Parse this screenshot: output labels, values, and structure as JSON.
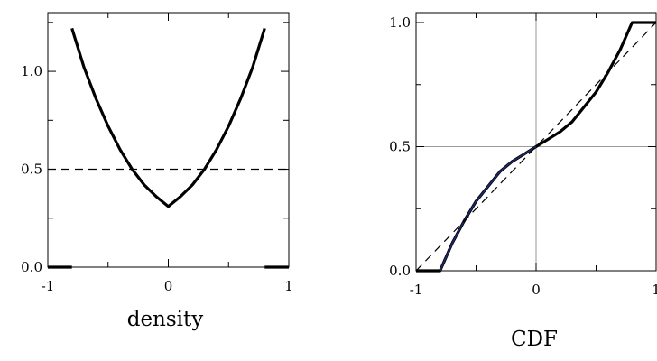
{
  "chart_data": [
    {
      "type": "line",
      "title": "density",
      "xlim": [
        -1,
        1
      ],
      "ylim": [
        0,
        1.3
      ],
      "x_ticks": [
        "-1",
        "0",
        "1"
      ],
      "y_ticks": [
        "0.0",
        "0.5",
        "1.0"
      ],
      "grid": false,
      "series": [
        {
          "style": "solid-thick",
          "x": [
            -0.8,
            -0.7,
            -0.6,
            -0.5,
            -0.4,
            -0.3,
            -0.2,
            -0.1,
            0.0,
            0.1,
            0.2,
            0.3,
            0.4,
            0.5,
            0.6,
            0.7,
            0.8
          ],
          "y": [
            1.22,
            1.02,
            0.86,
            0.72,
            0.6,
            0.5,
            0.42,
            0.36,
            0.31,
            0.36,
            0.42,
            0.5,
            0.6,
            0.72,
            0.86,
            1.02,
            1.22
          ]
        },
        {
          "style": "solid-thick",
          "x": [
            -1.0,
            -0.8
          ],
          "y": [
            0.0,
            0.0
          ]
        },
        {
          "style": "solid-thick",
          "x": [
            0.8,
            1.0
          ],
          "y": [
            0.0,
            0.0
          ]
        },
        {
          "style": "dashed",
          "x": [
            -1.0,
            1.0
          ],
          "y": [
            0.5,
            0.5
          ]
        }
      ]
    },
    {
      "type": "line",
      "title": "CDF",
      "xlim": [
        -1,
        1
      ],
      "ylim": [
        0,
        1.04
      ],
      "x_ticks": [
        "-1",
        "0",
        "1"
      ],
      "y_ticks": [
        "0.0",
        "0.5",
        "1.0"
      ],
      "grid": true,
      "series": [
        {
          "style": "solid-thick",
          "color": "#000000",
          "x": [
            -1.0,
            -0.8,
            -0.7,
            -0.6,
            -0.5,
            -0.4,
            -0.3,
            -0.2,
            -0.1,
            0.0,
            0.1,
            0.2,
            0.3,
            0.4,
            0.5,
            0.6,
            0.7,
            0.8,
            1.0
          ],
          "y": [
            0.0,
            0.0,
            0.11,
            0.2,
            0.28,
            0.34,
            0.4,
            0.44,
            0.47,
            0.5,
            0.53,
            0.56,
            0.6,
            0.66,
            0.72,
            0.8,
            0.89,
            1.0,
            1.0
          ]
        },
        {
          "style": "solid",
          "color": "#1f2a6b",
          "x": [
            -0.8,
            -0.7,
            -0.6,
            -0.5,
            -0.4,
            -0.3,
            -0.2,
            -0.1,
            0.0
          ],
          "y": [
            0.0,
            0.11,
            0.2,
            0.28,
            0.34,
            0.4,
            0.44,
            0.47,
            0.5
          ]
        },
        {
          "style": "dashed",
          "color": "#000000",
          "x": [
            -1.0,
            1.0
          ],
          "y": [
            0.0,
            1.0
          ]
        }
      ]
    }
  ]
}
